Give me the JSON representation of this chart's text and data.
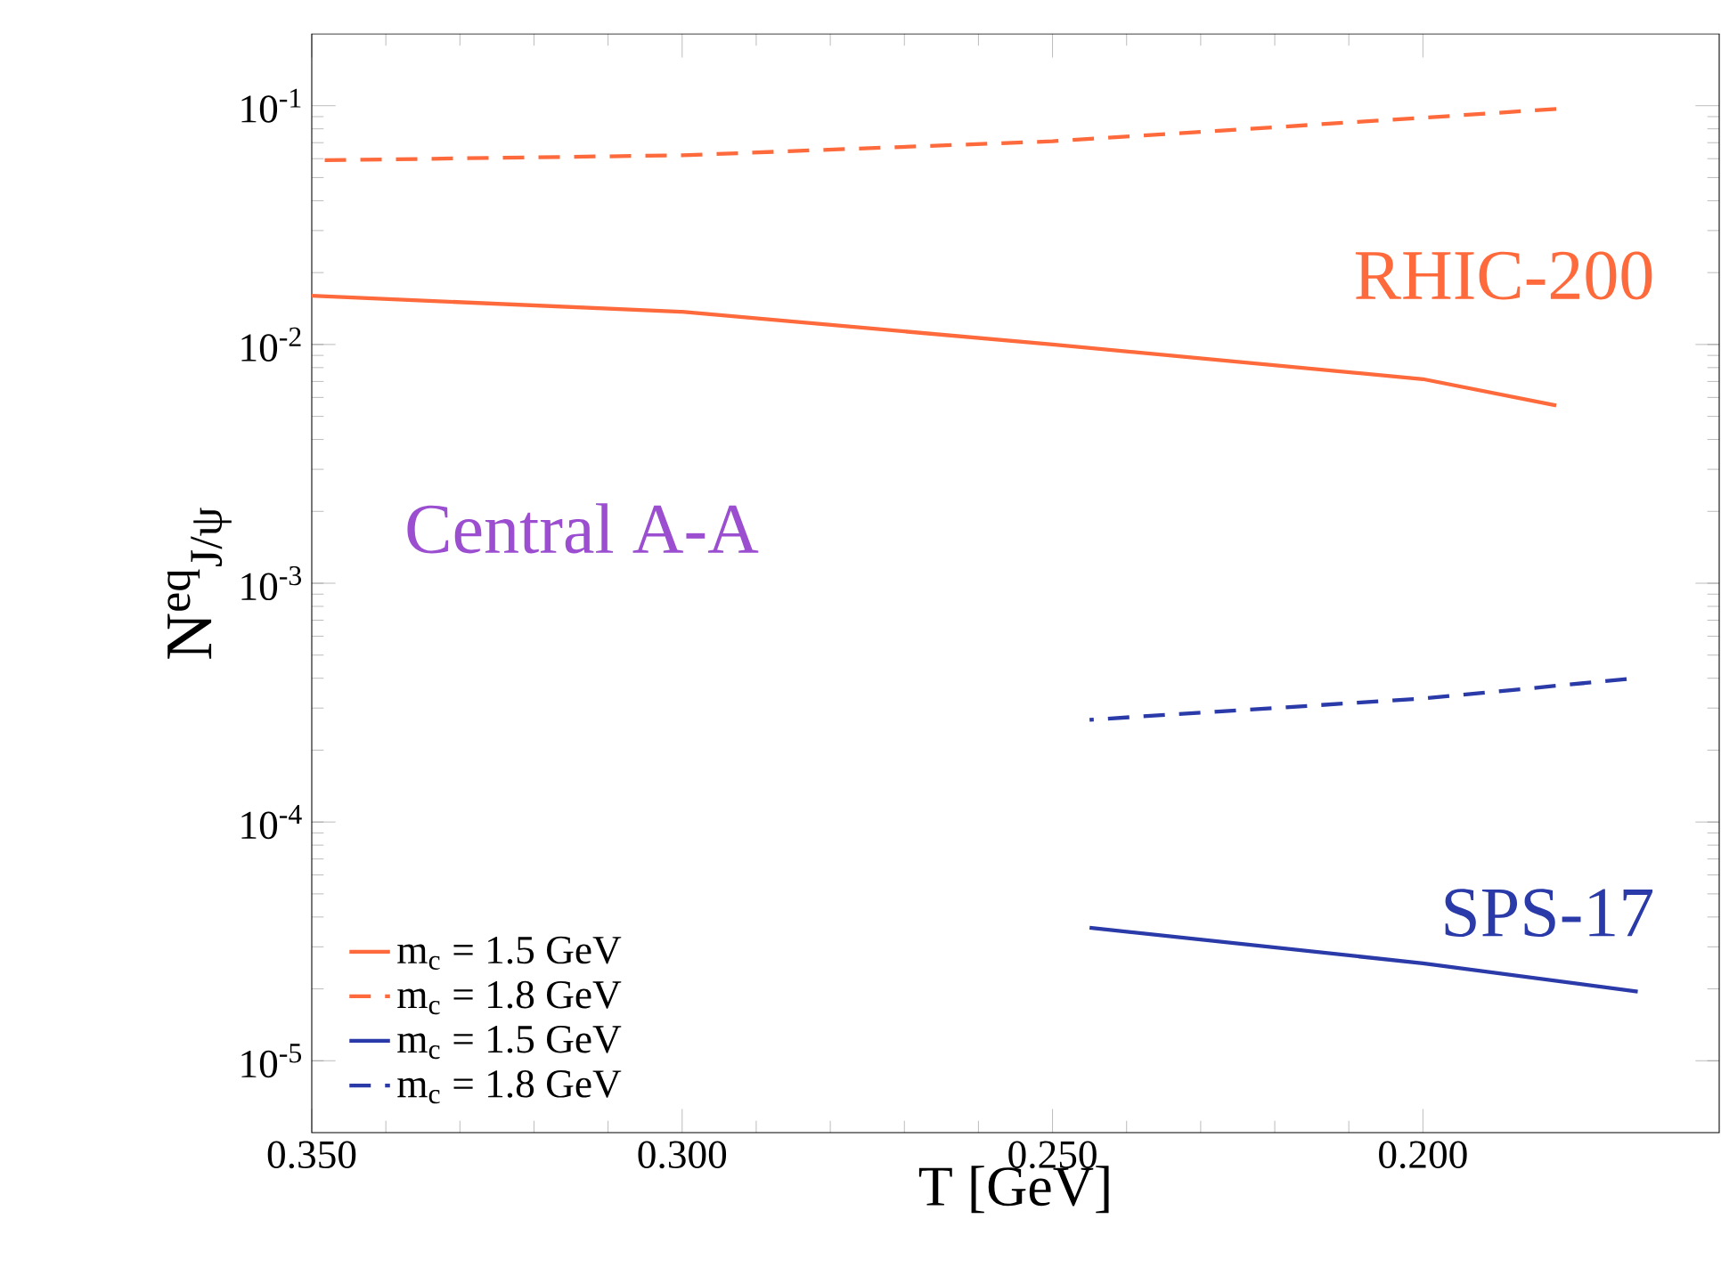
{
  "chart_data": {
    "type": "line",
    "xlabel": "T [GeV]",
    "ylabel": "N$^{eq}$$_{J/ψ}$",
    "log": "y",
    "xlim": [
      0.35,
      0.16
    ],
    "ylim": [
      5e-06,
      0.2
    ],
    "xticks": [
      {
        "value": 0.35,
        "label": "0.350"
      },
      {
        "value": 0.3,
        "label": "0.300"
      },
      {
        "value": 0.25,
        "label": "0.250"
      },
      {
        "value": 0.2,
        "label": "0.200"
      }
    ],
    "yticks": [
      {
        "value": 1e-05,
        "label": "10$^{-5}$"
      },
      {
        "value": 0.0001,
        "label": "10$^{-4}$"
      },
      {
        "value": 0.001,
        "label": "10$^{-3}$"
      },
      {
        "value": 0.01,
        "label": "10$^{-2}$"
      },
      {
        "value": 0.1,
        "label": "10$^{-1}$"
      }
    ],
    "legend": "bottom left",
    "grid": false,
    "marker": "none",
    "annotations": [
      "RHIC-200",
      "Central A-A",
      "SPS-17"
    ],
    "series": [
      {
        "name": "m$_{c}$ = 1.5 GeV",
        "color": "#ff6a3d",
        "line_style": "solid",
        "x": [
          0.35,
          0.3,
          0.25,
          0.2,
          0.182
        ],
        "values": [
          0.016,
          0.0137,
          0.01,
          0.00716,
          0.00555
        ]
      },
      {
        "name": "m$_{c}$ = 1.8 GeV",
        "color": "#ff6a3d",
        "line_style": "dashed",
        "x": [
          0.35,
          0.3,
          0.25,
          0.2,
          0.182
        ],
        "values": [
          0.059,
          0.062,
          0.071,
          0.089,
          0.097
        ]
      },
      {
        "name": "m$_{c}$ = 1.5 GeV",
        "color": "#2a3aa8",
        "line_style": "solid",
        "x": [
          0.245,
          0.2,
          0.171
        ],
        "values": [
          3.61e-05,
          2.56e-05,
          1.95e-05
        ]
      },
      {
        "name": "m$_{c}$ = 1.8 GeV",
        "color": "#2a3aa8",
        "line_style": "dashed",
        "x": [
          0.245,
          0.2,
          0.1725
        ],
        "values": [
          0.000268,
          0.000329,
          0.000397
        ]
      }
    ]
  }
}
